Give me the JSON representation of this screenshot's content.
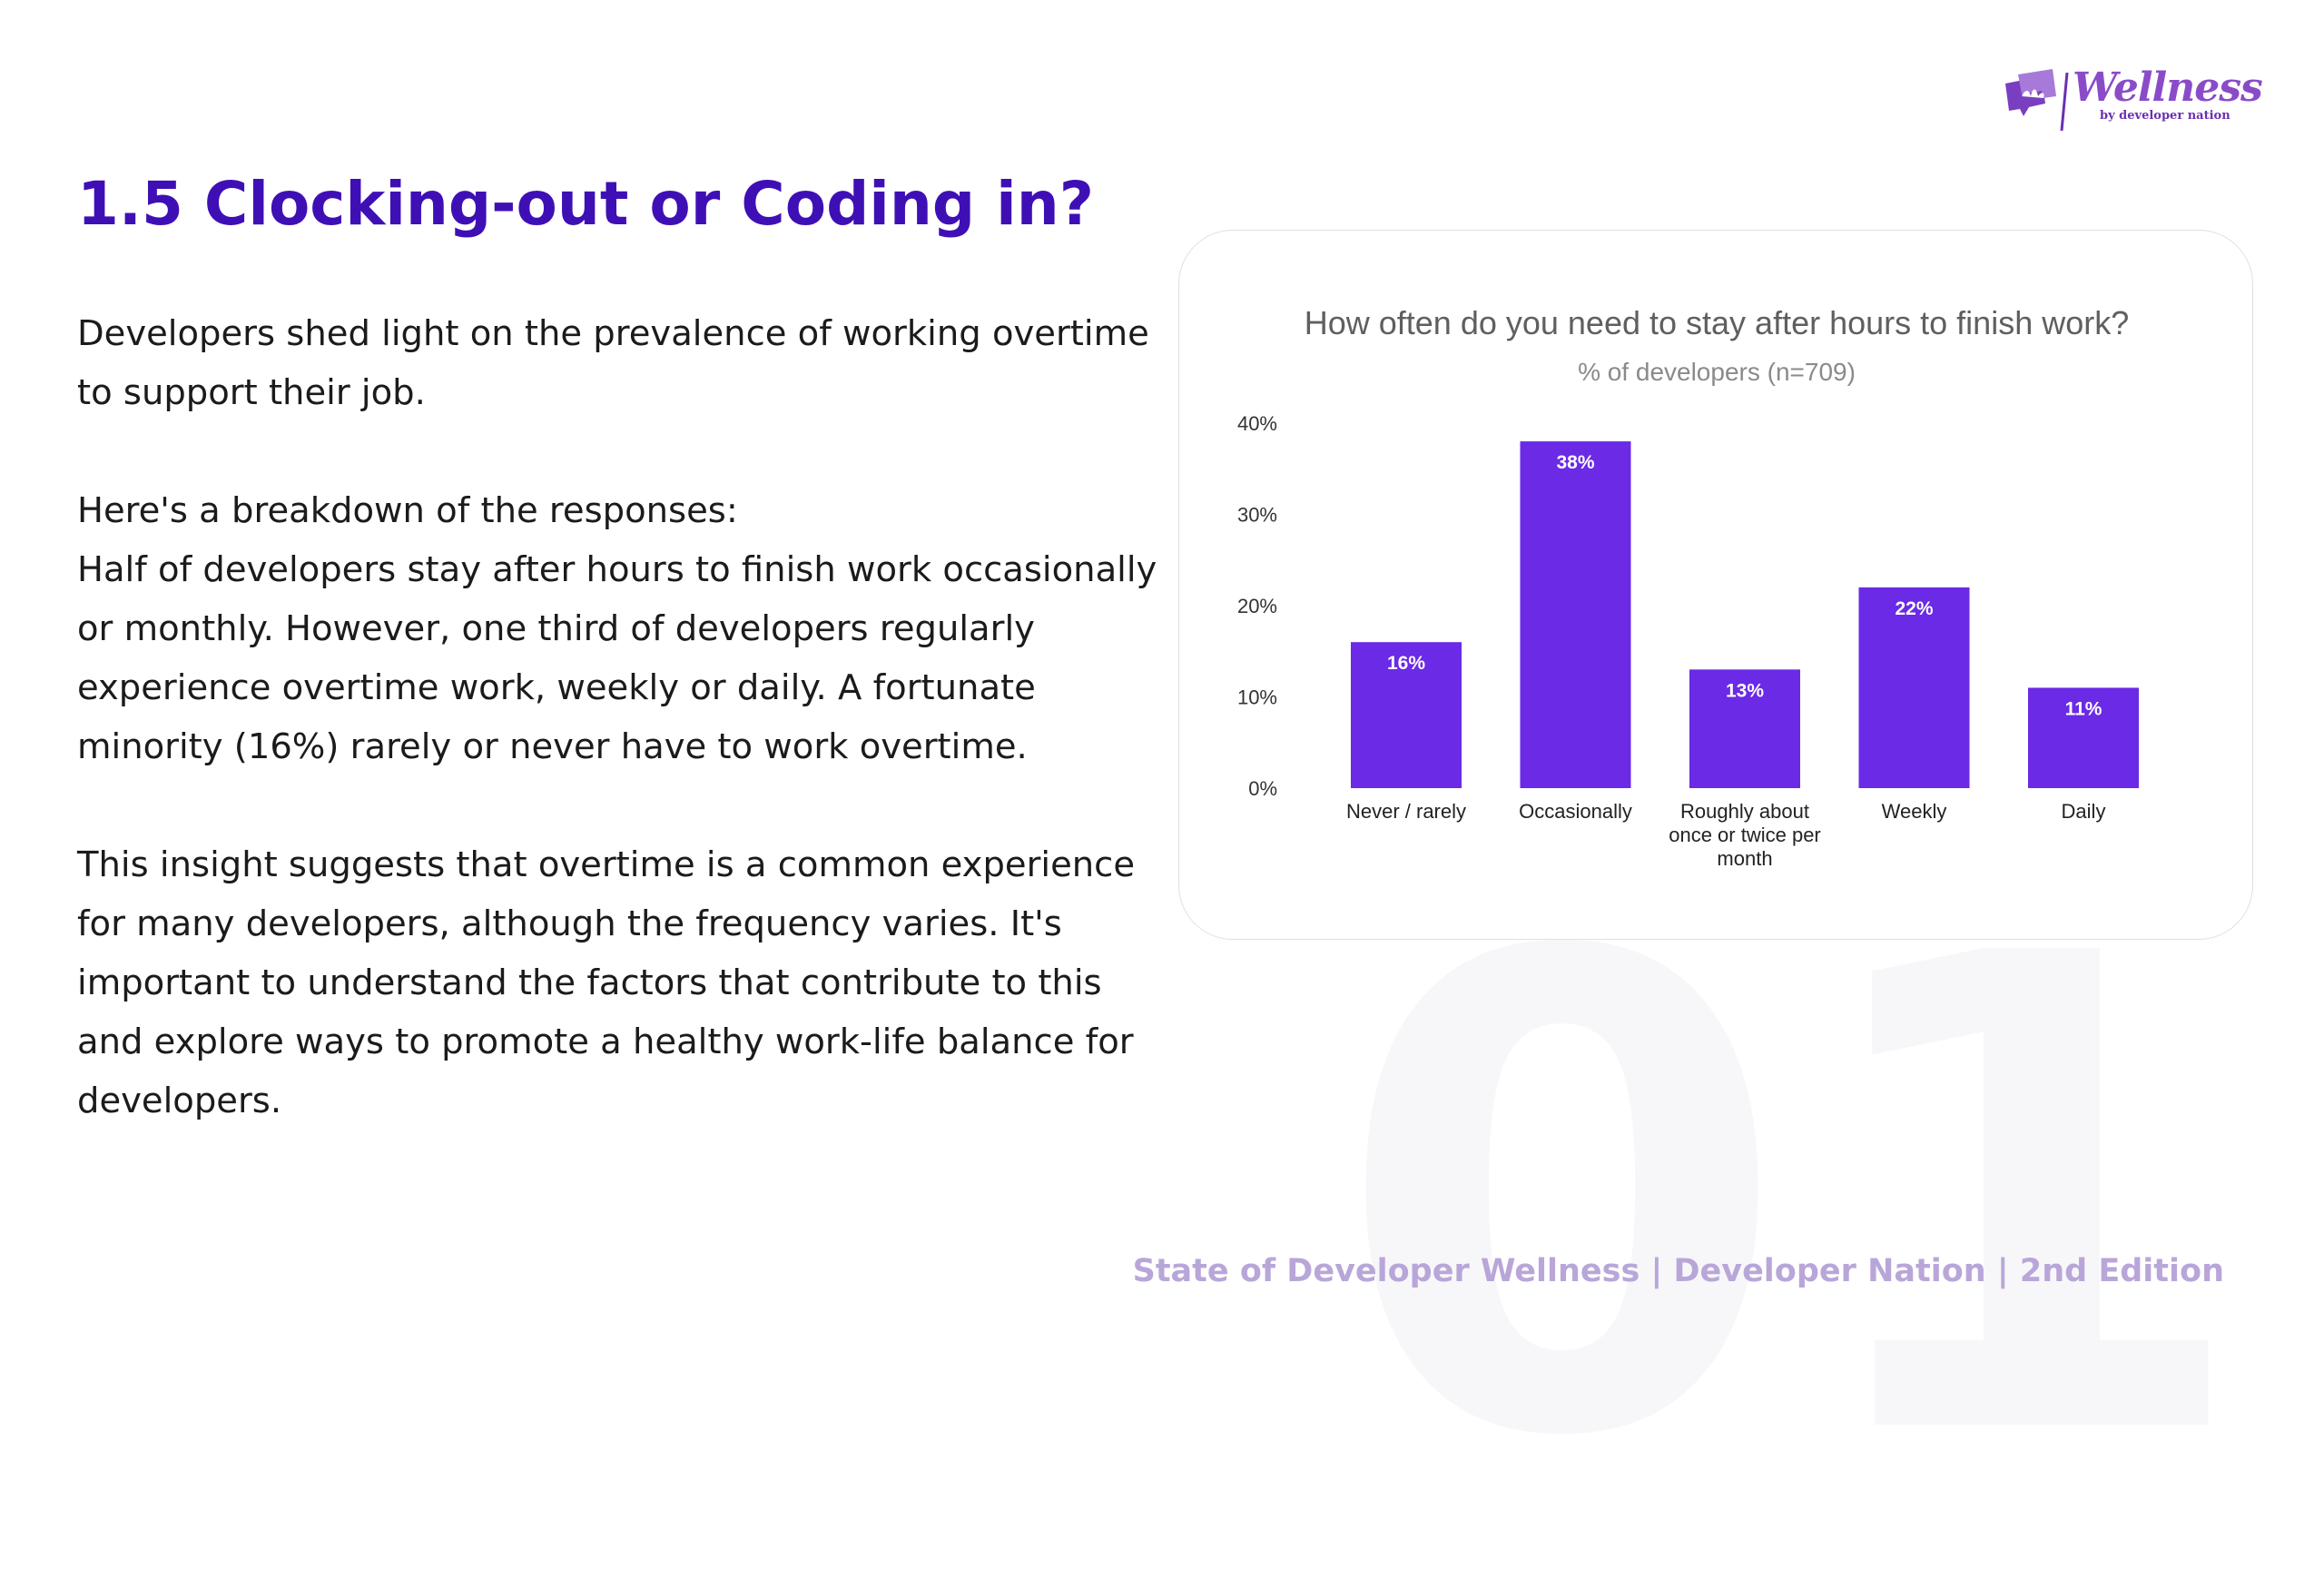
{
  "page": {
    "title": "1.5 Clocking-out or Coding in?",
    "watermark": "01",
    "footer": "State of Developer Wellness | Developer Nation | 2nd Edition"
  },
  "logo": {
    "word": "Wellness",
    "sub": "by developer nation",
    "icon": "lotus-chat-icon",
    "color": "#8a4bc9"
  },
  "body": {
    "paragraph1": "Developers shed light on the prevalence of working overtime to support their job.",
    "paragraph2_line1": "Here's a breakdown of the responses:",
    "paragraph2_line2": "Half of developers stay after hours to finish work occasionally or monthly. However, one third of developers regularly experience overtime work, weekly or daily. A fortunate minority (16%) rarely or never have to work overtime.",
    "paragraph3": "This insight suggests that overtime is a common experience for many developers, although the frequency varies. It's important to understand the factors that contribute to this and explore ways to promote a healthy work-life balance for developers."
  },
  "colors": {
    "title": "#3f0fb6",
    "bar": "#6a2ae6",
    "footer": "#b9a6d9"
  },
  "chart_data": {
    "type": "bar",
    "title": "How often do you need to stay after hours to finish work?",
    "subtitle": "% of developers (n=709)",
    "categories": [
      "Never / rarely",
      "Occasionally",
      "Roughly about once or twice per month",
      "Weekly",
      "Daily"
    ],
    "category_lines": [
      [
        "Never / rarely"
      ],
      [
        "Occasionally"
      ],
      [
        "Roughly about",
        "once or twice per",
        "month"
      ],
      [
        "Weekly"
      ],
      [
        "Daily"
      ]
    ],
    "values": [
      16,
      38,
      13,
      22,
      11
    ],
    "data_labels": [
      "16%",
      "38%",
      "13%",
      "22%",
      "11%"
    ],
    "yticks": [
      0,
      10,
      20,
      30,
      40
    ],
    "ytick_labels": [
      "0%",
      "10%",
      "20%",
      "30%",
      "40%"
    ],
    "ylim": [
      0,
      40
    ],
    "xlabel": "",
    "ylabel": "",
    "grid": false,
    "legend": "none"
  }
}
